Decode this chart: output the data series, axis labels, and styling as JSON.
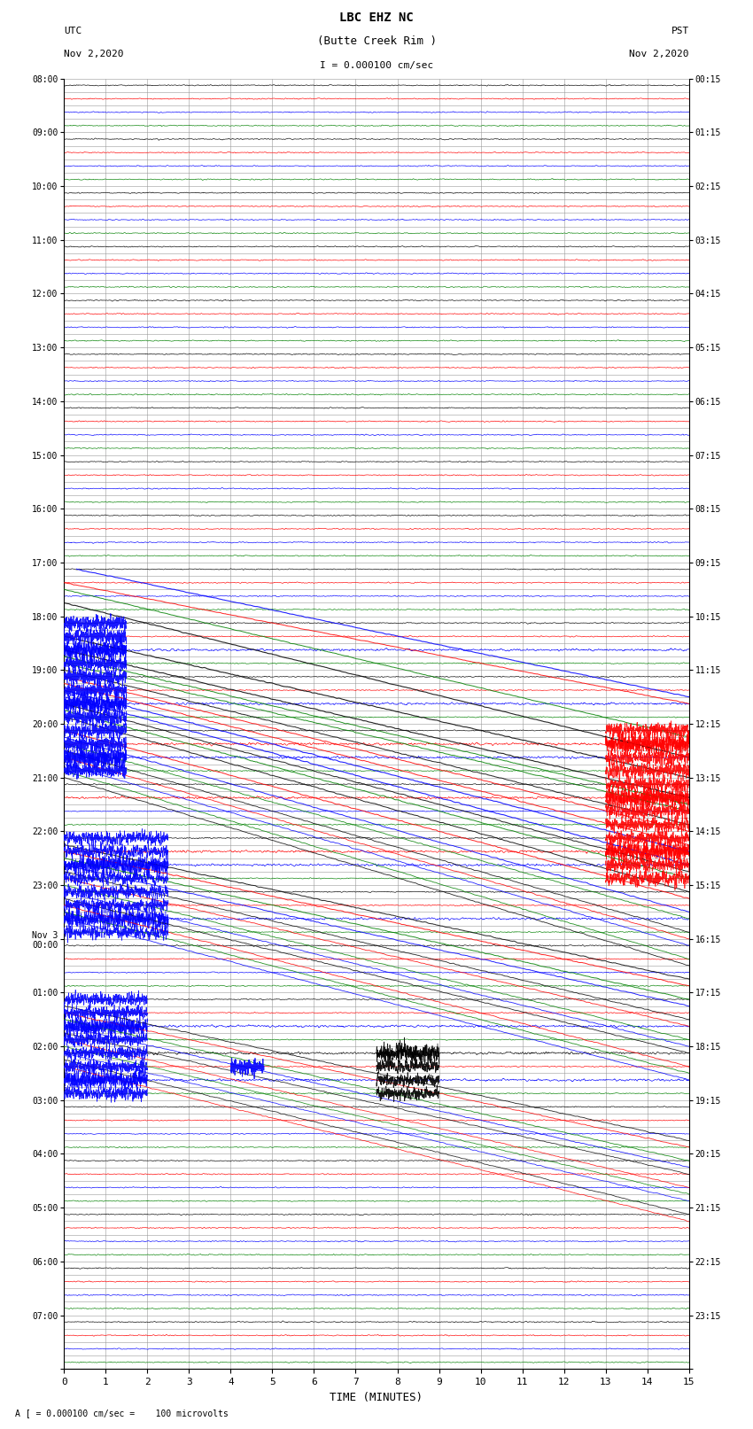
{
  "title_line1": "LBC EHZ NC",
  "title_line2": "(Butte Creek Rim )",
  "scale_text": "I = 0.000100 cm/sec",
  "left_label_top": "UTC",
  "left_label_date": "Nov 2,2020",
  "right_label_top": "PST",
  "right_label_date": "Nov 2,2020",
  "xlabel": "TIME (MINUTES)",
  "footer_text": "A [ = 0.000100 cm/sec =    100 microvolts",
  "utc_labels_full": [
    "08:00",
    "09:00",
    "10:00",
    "11:00",
    "12:00",
    "13:00",
    "14:00",
    "15:00",
    "16:00",
    "17:00",
    "18:00",
    "19:00",
    "20:00",
    "21:00",
    "22:00",
    "23:00",
    "Nov 3\n00:00",
    "01:00",
    "02:00",
    "03:00",
    "04:00",
    "05:00",
    "06:00",
    "07:00"
  ],
  "pst_labels_full": [
    "00:15",
    "01:15",
    "02:15",
    "03:15",
    "04:15",
    "05:15",
    "06:15",
    "07:15",
    "08:15",
    "09:15",
    "10:15",
    "11:15",
    "12:15",
    "13:15",
    "14:15",
    "15:15",
    "16:15",
    "17:15",
    "18:15",
    "19:15",
    "20:15",
    "21:15",
    "22:15",
    "23:15"
  ],
  "n_hours": 24,
  "traces_per_hour": 4,
  "x_min": 0,
  "x_max": 15,
  "bg_color": "#ffffff",
  "grid_color": "#999999",
  "colors": [
    "black",
    "red",
    "blue",
    "green"
  ],
  "figsize": [
    8.5,
    16.13
  ],
  "dpi": 100
}
